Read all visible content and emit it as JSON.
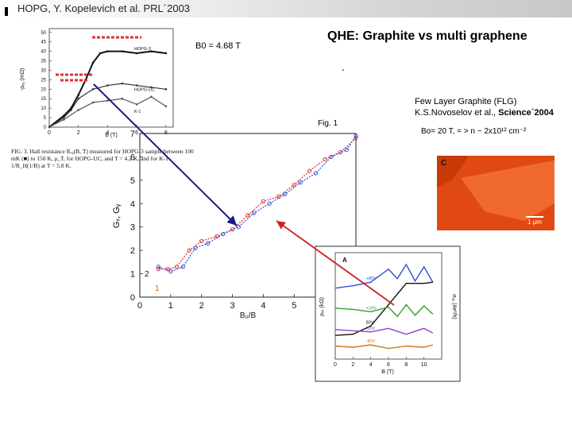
{
  "slide": {
    "title": "HOPG, Y. Kopelevich et al. PRL´2003",
    "heading": "QHE: Graphite vs multi graphene",
    "dot": ".",
    "b0_label": "B0 = 4.68 T",
    "flg_line1": "Few Layer Graphite (FLG)",
    "flg_line2_prefix": "K.S.Novoselov et al., ",
    "flg_line2_bold": "Science´2004",
    "bo_text": "Bo= 20 T, = > n ~ 2x10¹² cm⁻²",
    "fig_label": "Fig. 1",
    "caption": "FIG. 3. Hall resistance Rₓᵧ(B, T) measured for HOPG-3 sample between 100 mK (■) to 150 K, ρ_T, for HOPG-UC, and T = 4.2 K, and for K-1 1/R_H(1/B) at T = 5.8 K.",
    "afm_label": "C",
    "afm_scale": "1 μm"
  },
  "colors": {
    "accent_red": "#e03030",
    "accent_blue": "#3050d0",
    "afm_orange": "#e04a12",
    "arrow_navy": "#1a1a80",
    "arrow_red": "#cc2020"
  },
  "chart_data": [
    {
      "type": "line",
      "title": "",
      "ylabel": "-ρₓᵧ (mΩ)",
      "xlabel": "B (T)",
      "x_ticks": [
        "0",
        "2",
        "4",
        "6",
        "8"
      ],
      "y_ticks": [
        "0",
        "5",
        "10",
        "15",
        "20",
        "25",
        "30",
        "35",
        "40",
        "45",
        "50"
      ],
      "legend": [
        "HOPG-3",
        "HOPG-UC",
        "K-1"
      ],
      "series": [
        {
          "name": "HOPG-3",
          "x": [
            0,
            1,
            1.5,
            2,
            2.5,
            3,
            3.5,
            4,
            5,
            6,
            7,
            8
          ],
          "y": [
            0,
            6,
            10,
            17,
            25,
            34,
            39,
            40,
            40,
            39,
            40,
            39
          ]
        },
        {
          "name": "HOPG-UC",
          "x": [
            0,
            1,
            1.5,
            2,
            3,
            4,
            5,
            6,
            7,
            8
          ],
          "y": [
            0,
            5,
            9,
            15,
            20,
            22,
            23,
            22,
            21,
            20
          ]
        },
        {
          "name": "K-1",
          "x": [
            0,
            1,
            2,
            3,
            4,
            5,
            6,
            7,
            8
          ],
          "y": [
            0,
            4,
            9,
            13,
            14,
            15,
            12,
            16,
            11
          ]
        }
      ]
    },
    {
      "type": "scatter",
      "title": "",
      "xlabel": "B₀/B",
      "ylabel": "Gₓ, Gᵧ",
      "xlim": [
        0,
        7
      ],
      "ylim": [
        0,
        7
      ],
      "x_ticks": [
        "0",
        "1",
        "2",
        "3",
        "4",
        "5",
        "6"
      ],
      "y_ticks": [
        "0",
        "1",
        "2",
        "3",
        "4",
        "5",
        "6",
        "7"
      ],
      "annotations": [
        "1",
        "2"
      ],
      "series": [
        {
          "name": "1",
          "x": [
            0.6,
            0.9,
            1.2,
            1.6,
            2.0,
            2.5,
            3.0,
            3.5,
            4.0,
            4.5,
            5.0,
            5.5,
            6.0,
            6.5,
            7.0
          ],
          "y": [
            1.2,
            1.2,
            1.3,
            2.0,
            2.4,
            2.6,
            2.9,
            3.5,
            4.1,
            4.3,
            4.8,
            5.4,
            5.9,
            6.2,
            6.8
          ]
        },
        {
          "name": "2",
          "x": [
            0.6,
            1.0,
            1.4,
            1.8,
            2.2,
            2.7,
            3.2,
            3.7,
            4.2,
            4.7,
            5.2,
            5.7,
            6.2,
            6.7,
            7.0
          ],
          "y": [
            1.3,
            1.1,
            1.3,
            2.1,
            2.3,
            2.7,
            3.0,
            3.6,
            4.0,
            4.4,
            4.9,
            5.3,
            6.0,
            6.3,
            6.9
          ]
        }
      ]
    },
    {
      "type": "line",
      "title": "",
      "xlabel": "B (T)",
      "ylabel_left": "ρₓₓ (kΩ)",
      "ylabel_right": "σₓᵧ (4e²/h)",
      "x_ticks": [
        "0",
        "2",
        "4",
        "6",
        "8",
        "10"
      ],
      "panel_label": "A",
      "series": [
        {
          "name": "+80V",
          "color": "#3050d0",
          "x": [
            0,
            2,
            4,
            6,
            7,
            8,
            9,
            10,
            11
          ],
          "y": [
            6.0,
            6.2,
            6.5,
            7.6,
            6.8,
            8.0,
            6.6,
            7.8,
            6.5
          ]
        },
        {
          "name": "80V",
          "color": "#111111",
          "x": [
            0,
            2,
            4,
            6,
            8,
            10,
            11
          ],
          "y": [
            2.0,
            2.1,
            2.8,
            4.6,
            6.4,
            6.4,
            6.5
          ]
        },
        {
          "name": "+10V",
          "color": "#30a030",
          "x": [
            0,
            2,
            4,
            6,
            7,
            8,
            9,
            10,
            11
          ],
          "y": [
            4.3,
            4.2,
            4.0,
            4.4,
            3.6,
            4.6,
            3.7,
            4.5,
            3.8
          ]
        },
        {
          "name": "-10V",
          "color": "#9040c0",
          "x": [
            0,
            2,
            4,
            6,
            8,
            10,
            11
          ],
          "y": [
            2.5,
            2.4,
            2.3,
            2.6,
            2.1,
            2.6,
            2.2
          ]
        },
        {
          "name": "-80V",
          "color": "#d07820",
          "x": [
            0,
            2,
            4,
            6,
            8,
            10,
            11
          ],
          "y": [
            1.1,
            1.0,
            1.2,
            0.9,
            1.1,
            1.0,
            1.2
          ]
        }
      ]
    }
  ]
}
